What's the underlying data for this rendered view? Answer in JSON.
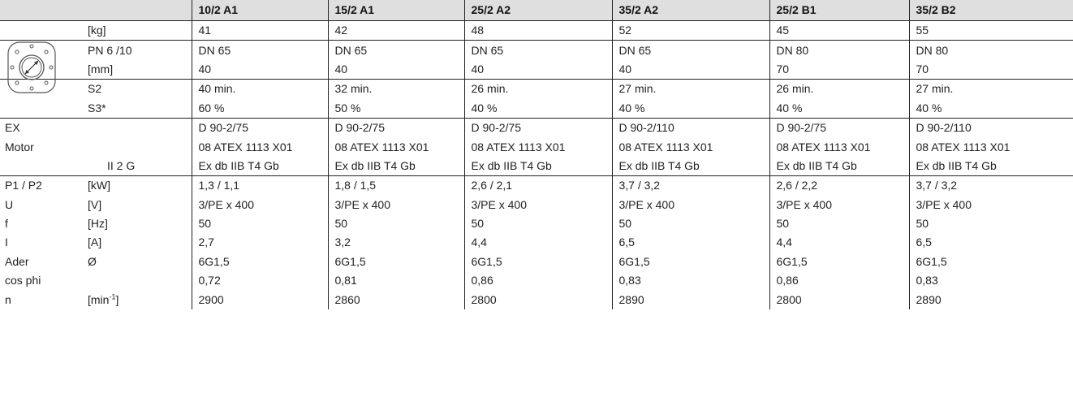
{
  "models": [
    "10/2 A1",
    "15/2 A1",
    "25/2 A2",
    "35/2 A2",
    "25/2 B1",
    "35/2 B2"
  ],
  "rows": [
    {
      "label": "",
      "unit": "[kg]",
      "values": [
        "41",
        "42",
        "48",
        "52",
        "45",
        "55"
      ]
    },
    {
      "label": "",
      "unit": "PN 6 /10",
      "values": [
        "DN 65",
        "DN 65",
        "DN 65",
        "DN 65",
        "DN 80",
        "DN 80"
      ]
    },
    {
      "label": "",
      "unit": "[mm]",
      "values": [
        "40",
        "40",
        "40",
        "40",
        "70",
        "70"
      ]
    },
    {
      "label": "",
      "unit": "S2",
      "values": [
        "40 min.",
        "32 min.",
        "26 min.",
        "27 min.",
        "26 min.",
        "27 min."
      ]
    },
    {
      "label": "",
      "unit": "S3*",
      "values": [
        "60 %",
        "50 %",
        "40 %",
        "40 %",
        "40 %",
        "40 %"
      ]
    },
    {
      "label": "EX",
      "unit": "",
      "values": [
        "D 90-2/75",
        "D 90-2/75",
        "D 90-2/75",
        "D 90-2/110",
        "D 90-2/75",
        "D 90-2/110"
      ]
    },
    {
      "label": "Motor",
      "unit": "",
      "values": [
        "08 ATEX 1113 X01",
        "08 ATEX 1113 X01",
        "08 ATEX 1113 X01",
        "08 ATEX 1113 X01",
        "08 ATEX 1113 X01",
        "08 ATEX 1113 X01"
      ]
    },
    {
      "label": "",
      "unit": "II 2 G",
      "values": [
        "Ex db IIB T4 Gb",
        "Ex db IIB T4 Gb",
        "Ex db IIB T4 Gb",
        "Ex db IIB T4 Gb",
        "Ex db IIB T4 Gb",
        "Ex db IIB T4 Gb"
      ]
    },
    {
      "label": "P1 / P2",
      "unit": "[kW]",
      "values": [
        "1,3 / 1,1",
        "1,8 / 1,5",
        "2,6 / 2,1",
        "3,7 / 3,2",
        "2,6 / 2,2",
        "3,7 / 3,2"
      ]
    },
    {
      "label": "U",
      "unit": "[V]",
      "values": [
        "3/PE x 400",
        "3/PE x 400",
        "3/PE x 400",
        "3/PE x 400",
        "3/PE x 400",
        "3/PE x 400"
      ]
    },
    {
      "label": "f",
      "unit": "[Hz]",
      "values": [
        "50",
        "50",
        "50",
        "50",
        "50",
        "50"
      ]
    },
    {
      "label": "I",
      "unit": "[A]",
      "values": [
        "2,7",
        "3,2",
        "4,4",
        "6,5",
        "4,4",
        "6,5"
      ]
    },
    {
      "label": "Ader",
      "unit": "Ø",
      "values": [
        "6G1,5",
        "6G1,5",
        "6G1,5",
        "6G1,5",
        "6G1,5",
        "6G1,5"
      ]
    },
    {
      "label": "cos phi",
      "unit": "",
      "values": [
        "0,72",
        "0,81",
        "0,86",
        "0,83",
        "0,86",
        "0,83"
      ]
    },
    {
      "label": "n",
      "unit": "[min",
      "unit_sup": "-1",
      "unit_suffix": "]",
      "values": [
        "2900",
        "2860",
        "2800",
        "2890",
        "2800",
        "2890"
      ]
    }
  ],
  "icons": {
    "flange": "flange-diameter-icon"
  },
  "colors": {
    "header_bg": "#dfdfdf",
    "rule": "#222222",
    "text": "#222222"
  }
}
